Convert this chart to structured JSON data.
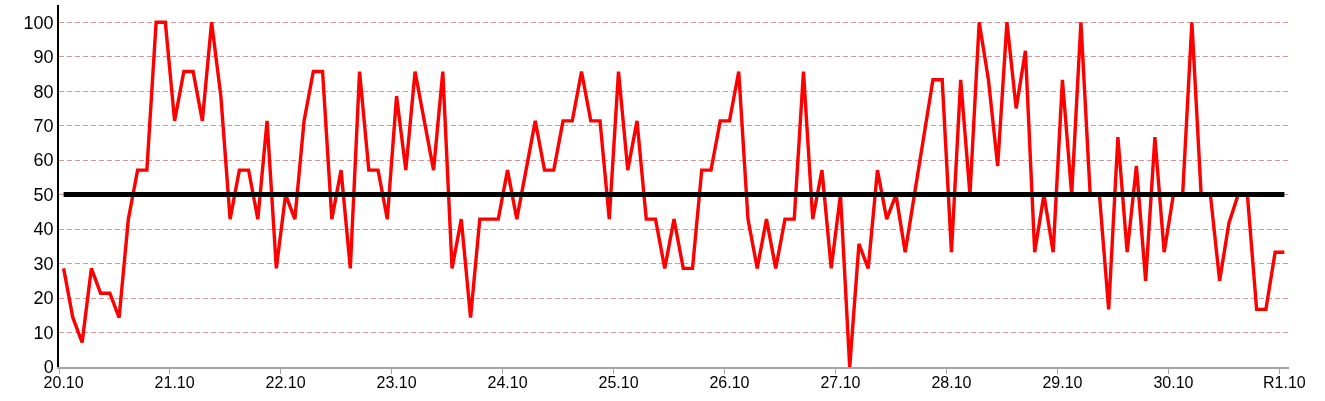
{
  "chart_data": {
    "type": "line",
    "categories": [
      "20.10",
      null,
      null,
      null,
      null,
      null,
      null,
      null,
      null,
      null,
      null,
      null,
      "21.10",
      null,
      null,
      null,
      null,
      null,
      null,
      null,
      null,
      null,
      null,
      null,
      "22.10",
      null,
      null,
      null,
      null,
      null,
      null,
      null,
      null,
      null,
      null,
      null,
      "23.10",
      null,
      null,
      null,
      null,
      null,
      null,
      null,
      null,
      null,
      null,
      null,
      "24.10",
      null,
      null,
      null,
      null,
      null,
      null,
      null,
      null,
      null,
      null,
      null,
      "25.10",
      null,
      null,
      null,
      null,
      null,
      null,
      null,
      null,
      null,
      null,
      null,
      "26.10",
      null,
      null,
      null,
      null,
      null,
      null,
      null,
      null,
      null,
      null,
      null,
      "27.10",
      null,
      null,
      null,
      null,
      null,
      null,
      null,
      null,
      null,
      null,
      null,
      "28.10",
      null,
      null,
      null,
      null,
      null,
      null,
      null,
      null,
      null,
      null,
      null,
      "29.10",
      null,
      null,
      null,
      null,
      null,
      null,
      null,
      null,
      null,
      null,
      null,
      "30.10",
      null,
      null,
      null,
      null,
      null,
      null,
      null,
      null,
      null,
      null,
      null,
      "R1.10"
    ],
    "series": [
      {
        "color": "#ff0000",
        "values": [
          28.6,
          14.3,
          7.1,
          28.6,
          21.4,
          21.4,
          14.3,
          42.9,
          57.1,
          57.1,
          100,
          100,
          71.4,
          85.7,
          85.7,
          71.4,
          100,
          78.6,
          42.9,
          57.1,
          57.1,
          42.9,
          71.4,
          28.6,
          50,
          42.9,
          71.4,
          85.7,
          85.7,
          42.9,
          57.1,
          28.6,
          85.7,
          57.1,
          57.1,
          42.9,
          78.6,
          57.1,
          85.7,
          71.4,
          57.1,
          85.7,
          28.6,
          42.9,
          14.3,
          42.9,
          42.9,
          42.9,
          57.1,
          42.9,
          57.1,
          71.4,
          57.1,
          57.1,
          71.4,
          71.4,
          85.7,
          71.4,
          71.4,
          42.9,
          85.7,
          57.1,
          71.4,
          42.9,
          42.9,
          28.6,
          42.9,
          28.6,
          28.6,
          57.1,
          57.1,
          71.4,
          71.4,
          85.7,
          42.9,
          28.6,
          42.9,
          28.6,
          42.9,
          42.9,
          85.7,
          42.9,
          57.1,
          28.6,
          50,
          0,
          35.7,
          28.6,
          57.1,
          42.9,
          50,
          33.3,
          50,
          66.7,
          83.3,
          83.3,
          33.3,
          83.3,
          50,
          100,
          83.3,
          58.3,
          100,
          75,
          91.7,
          33.3,
          50,
          33.3,
          83.3,
          50,
          100,
          50,
          50,
          16.7,
          66.7,
          33.3,
          58.3,
          25,
          66.7,
          33.3,
          50,
          50,
          100,
          50,
          50,
          25,
          41.7,
          50,
          50,
          16.7,
          16.7,
          33.3,
          33.3
        ]
      }
    ],
    "ylim": [
      0,
      105
    ],
    "yticks": [
      0,
      10,
      20,
      30,
      40,
      50,
      60,
      70,
      80,
      90,
      100
    ],
    "grid": "y",
    "line_style": "solid",
    "ref_lines": [
      {
        "axis": "y",
        "value": 50,
        "color": "#000000"
      }
    ]
  }
}
